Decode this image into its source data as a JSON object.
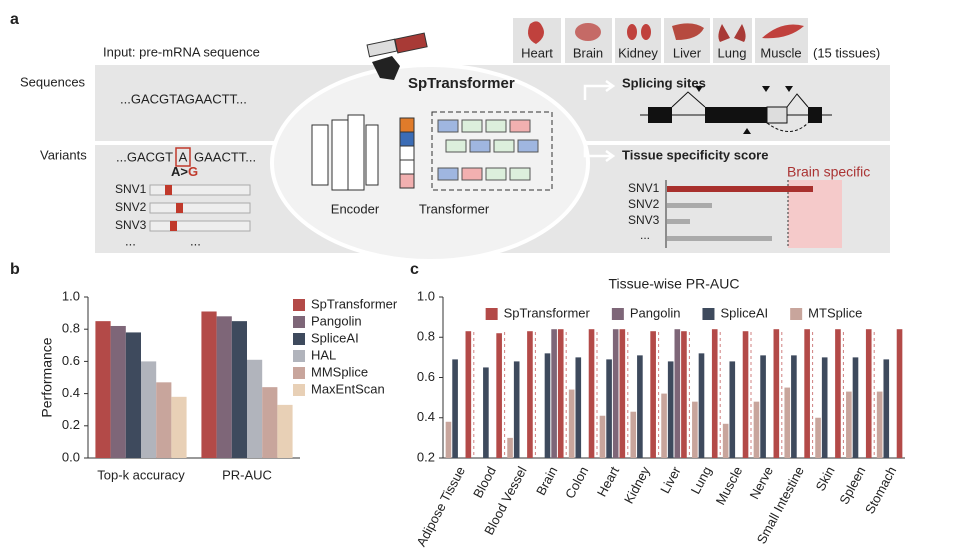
{
  "diagram": {
    "panel_label": "a",
    "input_label": "Input: pre-mRNA sequence",
    "sequences_label": "Sequences",
    "sequence": "...GACGTAGAACTT...",
    "variants_label": "Variants",
    "variant_seq_left": "...GACGT",
    "variant_base": "A",
    "variant_seq_right": "GAACTT...",
    "mutation_ref": "A>",
    "mutation_alt": "G",
    "snvs": [
      "SNV1",
      "SNV2",
      "SNV3"
    ],
    "snv_more": [
      "...",
      "..."
    ],
    "model_name": "SpTransformer",
    "encoder": "Encoder",
    "transformer": "Transformer",
    "tissues": [
      "Heart",
      "Brain",
      "Kidney",
      "Liver",
      "Lung",
      "Muscle"
    ],
    "tissue_count": "(15 tissues)",
    "output_sites": "Splicing sites",
    "output_score": "Tissue specificity score",
    "score_labels": [
      "SNV1",
      "SNV2",
      "SNV3",
      "..."
    ],
    "highlight": "Brain specific"
  },
  "chart_data": [
    {
      "type": "bar",
      "panel_label": "b",
      "ylabel": "Performance",
      "categories": [
        "Top-k accuracy",
        "PR-AUC"
      ],
      "series": [
        {
          "name": "SpTransformer",
          "color": "#b34a48",
          "values": [
            0.85,
            0.91
          ]
        },
        {
          "name": "Pangolin",
          "color": "#7e6678",
          "values": [
            0.82,
            0.88
          ]
        },
        {
          "name": "SpliceAI",
          "color": "#3e4a5d",
          "values": [
            0.78,
            0.85
          ]
        },
        {
          "name": "HAL",
          "color": "#b1b4bc",
          "values": [
            0.6,
            0.61
          ]
        },
        {
          "name": "MMSplice",
          "color": "#c8a59c",
          "values": [
            0.47,
            0.44
          ]
        },
        {
          "name": "MaxEntScan",
          "color": "#e8d0b6",
          "values": [
            0.38,
            0.33
          ]
        }
      ],
      "ylim": [
        0,
        1
      ],
      "yticks": [
        {
          "value": 0,
          "label": "0.0"
        },
        0.2,
        0.4,
        0.6,
        0.8,
        {
          "value": 1,
          "label": "1.0"
        }
      ],
      "legend": "upper right"
    },
    {
      "type": "bar",
      "panel_label": "c",
      "title": "Tissue-wise PR-AUC",
      "categories": [
        "Adipose Tissue",
        "Blood",
        "Blood Vessel",
        "Brain",
        "Colon",
        "Heart",
        "Kidney",
        "Liver",
        "Lung",
        "Muscle",
        "Nerve",
        "Small Intestine",
        "Skin",
        "Spleen",
        "Stomach"
      ],
      "series": [
        {
          "name": "SpTransformer",
          "color": "#b34a48",
          "values": [
            0.83,
            0.82,
            0.83,
            0.84,
            0.84,
            0.84,
            0.83,
            0.83,
            0.84,
            0.83,
            0.84,
            0.84,
            0.84,
            0.84,
            0.84
          ]
        },
        {
          "name": "Pangolin",
          "color": "#7e6678",
          "values": [
            null,
            null,
            null,
            0.84,
            null,
            0.84,
            null,
            0.84,
            null,
            null,
            null,
            null,
            null,
            null,
            null
          ]
        },
        {
          "name": "SpliceAI",
          "color": "#3e4a5d",
          "values": [
            0.69,
            0.65,
            0.68,
            0.72,
            0.7,
            0.69,
            0.71,
            0.68,
            0.72,
            0.68,
            0.71,
            0.71,
            0.7,
            0.7,
            0.69
          ]
        },
        {
          "name": "MTSplice",
          "color": "#c8a59c",
          "values": [
            0.38,
            null,
            0.3,
            null,
            0.54,
            0.41,
            0.43,
            0.52,
            0.48,
            0.37,
            0.48,
            0.55,
            0.4,
            0.53,
            0.53
          ]
        }
      ],
      "ylim": [
        0.2,
        1.0
      ],
      "yticks": [
        0.2,
        0.4,
        0.6,
        0.8,
        {
          "value": 1,
          "label": "1.0"
        }
      ],
      "legend": "upper center"
    }
  ]
}
